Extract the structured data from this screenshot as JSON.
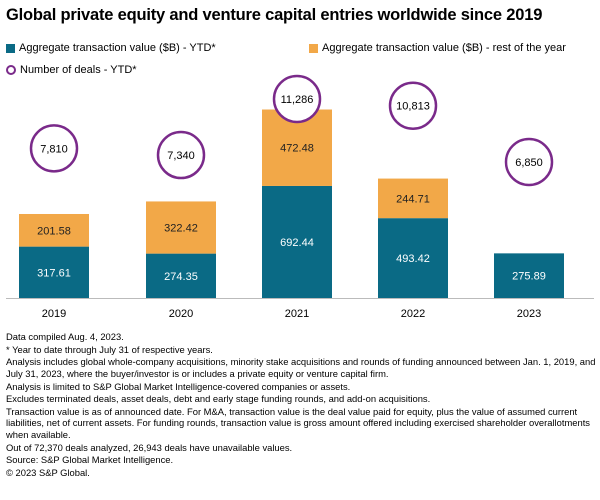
{
  "title": "Global private equity and venture capital entries worldwide since 2019",
  "colors": {
    "ytd": "#0a6a85",
    "rest": "#f2a848",
    "deals_circle": "#7a2a8a",
    "axis": "#bbbbbb"
  },
  "legend": {
    "ytd": "Aggregate transaction value ($B) - YTD*",
    "rest": "Aggregate transaction value ($B) - rest of the year",
    "deals": "Number of deals - YTD*"
  },
  "chart_data": {
    "type": "bar",
    "stacked": true,
    "categories": [
      "2019",
      "2020",
      "2021",
      "2022",
      "2023"
    ],
    "series": [
      {
        "name": "Aggregate transaction value ($B) - YTD*",
        "values": [
          317.61,
          274.35,
          692.44,
          493.42,
          275.89
        ],
        "labels": [
          "317.61",
          "274.35",
          "692.44",
          "493.42",
          "275.89"
        ]
      },
      {
        "name": "Aggregate transaction value ($B) - rest of the year",
        "values": [
          201.58,
          322.42,
          472.48,
          244.71,
          null
        ],
        "labels": [
          "201.58",
          "322.42",
          "472.48",
          "244.71",
          ""
        ]
      }
    ],
    "deals": {
      "name": "Number of deals - YTD*",
      "values": [
        7810,
        7340,
        11286,
        10813,
        6850
      ],
      "labels": [
        "7,810",
        "7,340",
        "11,286",
        "10,813",
        "6,850"
      ]
    },
    "ylim": [
      0,
      1300
    ],
    "grid": false
  },
  "notes": [
    "Data compiled Aug. 4, 2023.",
    "* Year to date through July 31 of respective years.",
    "Analysis includes global whole-company acquisitions, minority stake acquisitions and rounds of funding announced between Jan. 1, 2019, and July 31, 2023, where the buyer/investor is or includes a private equity or venture capital firm.",
    "Analysis is limited to S&P Global Market Intelligence-covered companies or assets.",
    "Excludes terminated deals, asset deals, debt and early stage funding rounds, and add-on acquisitions.",
    "Transaction value is as of announced date. For M&A, transaction value is the deal value paid for equity, plus the value of assumed current liabilities, net of current assets. For funding rounds, transaction value is gross amount offered including exercised shareholder overallotments when available.",
    "Out of 72,370 deals analyzed, 26,943 deals have unavailable values.",
    "Source: S&P Global Market Intelligence.",
    "© 2023 S&P Global."
  ]
}
